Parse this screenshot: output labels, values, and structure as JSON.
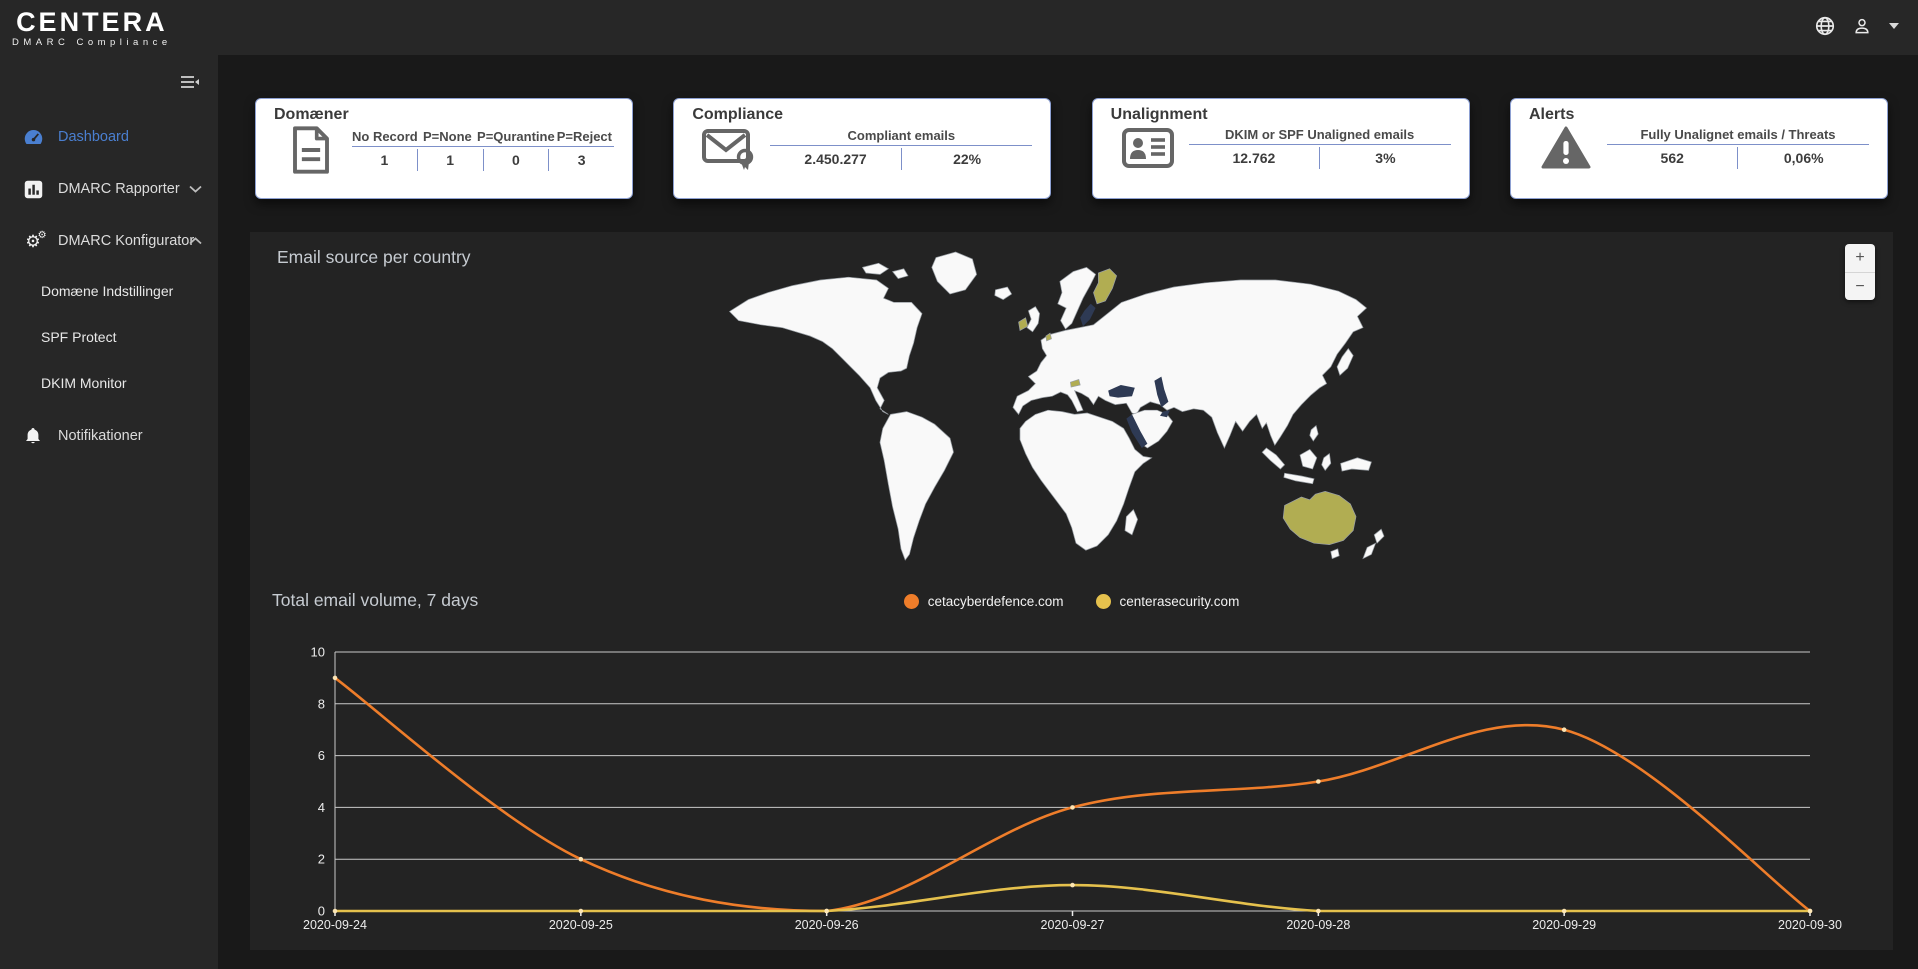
{
  "brand": {
    "name": "CENTERA",
    "tagline": "DMARC Compliance"
  },
  "header": {
    "icons": [
      "globe-icon",
      "user-icon",
      "caret-down-icon"
    ]
  },
  "sidebar": {
    "collapse_icon": "collapse-menu-icon",
    "items": [
      {
        "label": "Dashboard",
        "icon": "gauge-icon",
        "active": true
      },
      {
        "label": "DMARC Rapporter",
        "icon": "bar-chart-icon",
        "chevron": "down"
      },
      {
        "label": "DMARC Konfigurator",
        "icon": "gears-icon",
        "chevron": "up"
      },
      {
        "label": "Domæne Indstillinger",
        "sub": true
      },
      {
        "label": "SPF Protect",
        "sub": true
      },
      {
        "label": "DKIM Monitor",
        "sub": true
      },
      {
        "label": "Notifikationer",
        "icon": "bell-icon"
      }
    ]
  },
  "cards": [
    {
      "title": "Domæner",
      "icon": "document-icon",
      "columns": [
        "No Record",
        "P=None",
        "P=Qurantine",
        "P=Reject"
      ],
      "values": [
        "1",
        "1",
        "0",
        "3"
      ]
    },
    {
      "title": "Compliance",
      "icon": "certified-mail-icon",
      "columns": [
        "Compliant emails"
      ],
      "values": [
        "2.450.277",
        "22%"
      ]
    },
    {
      "title": "Unalignment",
      "icon": "id-card-icon",
      "columns": [
        "DKIM or SPF Unaligned emails"
      ],
      "values": [
        "12.762",
        "3%"
      ]
    },
    {
      "title": "Alerts",
      "icon": "warning-icon",
      "columns": [
        "Fully Unalignet emails / Threats"
      ],
      "values": [
        "562",
        "0,06%"
      ]
    }
  ],
  "map": {
    "title": "Email source per country",
    "zoom_in": "+",
    "zoom_out": "−",
    "land_color": "#f9f9f9",
    "highlight_color": "#b1ad52",
    "sea_color": "#2e3a54",
    "highlighted_countries": [
      "Finland",
      "Ireland",
      "Netherlands",
      "Austria",
      "Australia"
    ]
  },
  "chart": {
    "title": "Total email volume, 7 days"
  },
  "chart_data": {
    "type": "line",
    "x": [
      "2020-09-24",
      "2020-09-25",
      "2020-09-26",
      "2020-09-27",
      "2020-09-28",
      "2020-09-29",
      "2020-09-30"
    ],
    "series": [
      {
        "name": "cetacyberdefence.com",
        "color": "#ee7d2a",
        "values": [
          9,
          2,
          0,
          4,
          5,
          7,
          0
        ]
      },
      {
        "name": "centerasecurity.com",
        "color": "#e5c14d",
        "values": [
          0,
          0,
          0,
          1,
          0,
          0,
          0
        ]
      }
    ],
    "ylim": [
      0,
      10
    ],
    "yticks": [
      0,
      2,
      4,
      6,
      8,
      10
    ],
    "grid": true,
    "legend_position": "top-center"
  }
}
